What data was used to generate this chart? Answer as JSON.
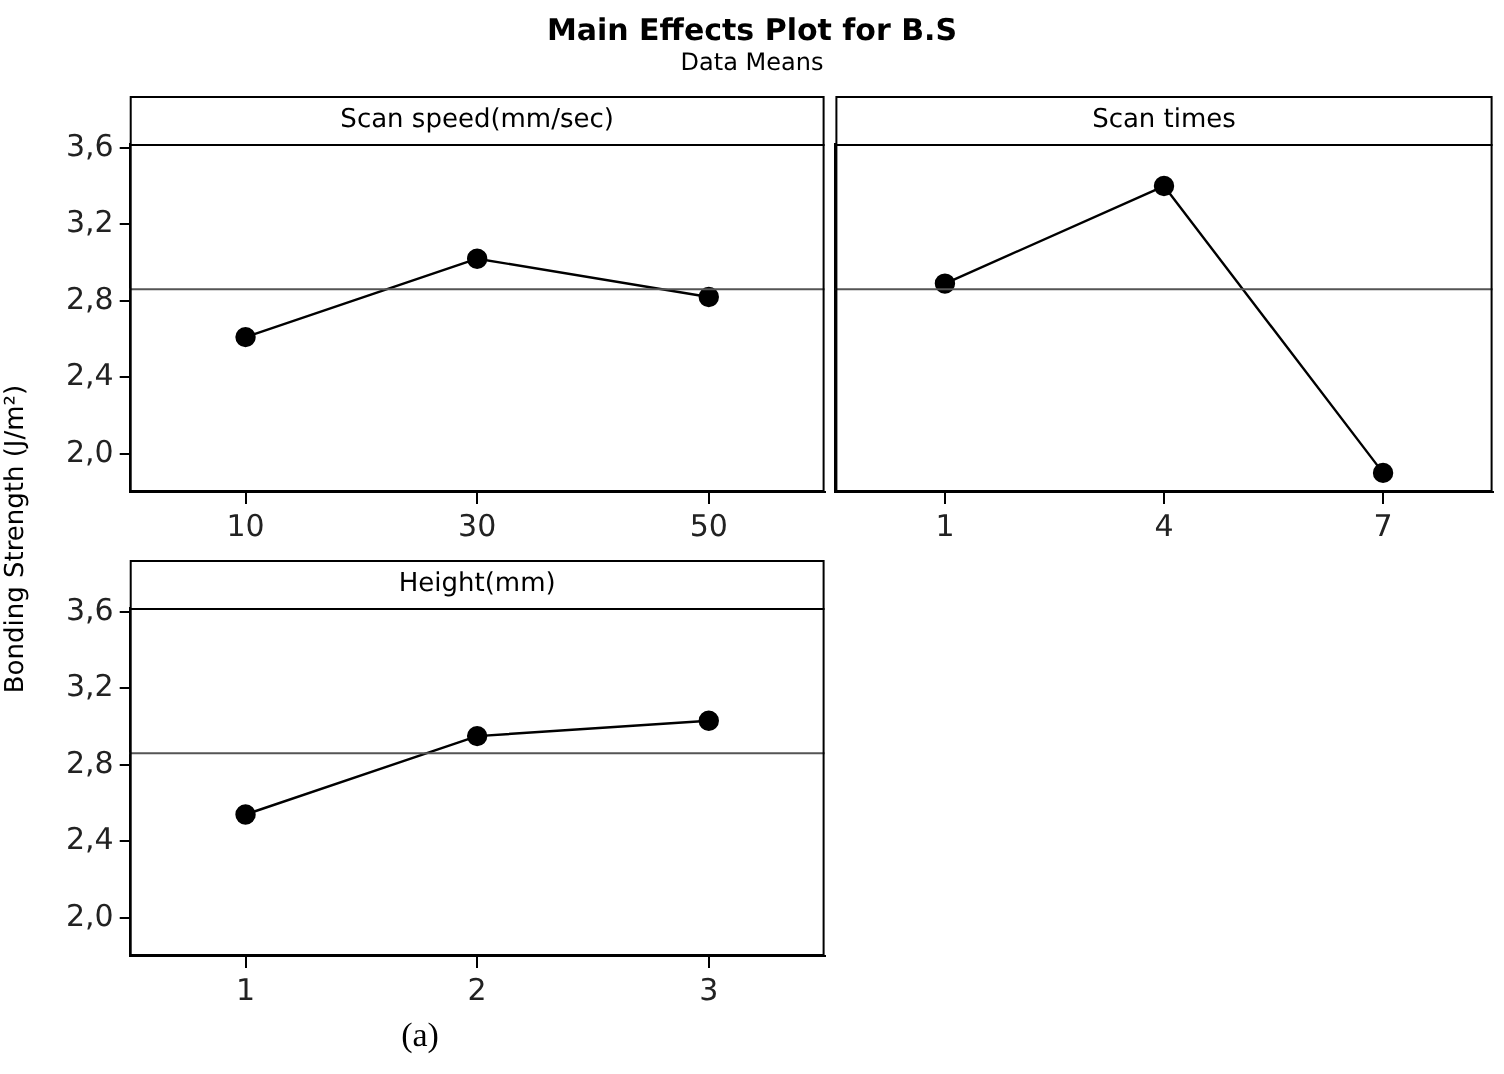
{
  "chart_data": [
    {
      "type": "line",
      "title": "Scan speed(mm/sec)",
      "ylabel": "Bonding Strength (J/m²)",
      "annotations": [
        "Main Effects Plot for B.S",
        "Data Means",
        "(a)"
      ],
      "categories": [
        "10",
        "30",
        "50"
      ],
      "series": [
        {
          "color": "#000000",
          "values": [
            2.61,
            3.02,
            2.82
          ]
        }
      ],
      "ylim": [
        1.8,
        3.62
      ],
      "yticks": [
        {
          "value": 2.0,
          "label": "2,0"
        },
        {
          "value": 2.4,
          "label": "2,4"
        },
        {
          "value": 2.8,
          "label": "2,8"
        },
        {
          "value": 3.2,
          "label": "3,2"
        },
        {
          "value": 3.6,
          "label": "3,6"
        }
      ],
      "ref_lines": [
        {
          "axis": "y",
          "value": 2.86,
          "color": "#555555"
        }
      ],
      "grid": false,
      "legend": false,
      "marker": "circle",
      "line_style": "solid"
    },
    {
      "type": "line",
      "title": "Scan times",
      "categories": [
        "1",
        "4",
        "7"
      ],
      "series": [
        {
          "color": "#000000",
          "values": [
            2.89,
            3.4,
            1.9
          ]
        }
      ],
      "ylim": [
        1.8,
        3.62
      ],
      "ref_lines": [
        {
          "axis": "y",
          "value": 2.86,
          "color": "#555555"
        }
      ],
      "grid": false,
      "legend": false,
      "marker": "circle",
      "line_style": "solid",
      "tick_labels": "x"
    },
    {
      "type": "line",
      "title": "Height(mm)",
      "categories": [
        "1",
        "2",
        "3"
      ],
      "series": [
        {
          "color": "#000000",
          "values": [
            2.54,
            2.95,
            3.03
          ]
        }
      ],
      "ylim": [
        1.8,
        3.62
      ],
      "yticks": [
        {
          "value": 2.0,
          "label": "2,0"
        },
        {
          "value": 2.4,
          "label": "2,4"
        },
        {
          "value": 2.8,
          "label": "2,8"
        },
        {
          "value": 3.2,
          "label": "3,2"
        },
        {
          "value": 3.6,
          "label": "3,6"
        }
      ],
      "ref_lines": [
        {
          "axis": "y",
          "value": 2.86,
          "color": "#555555"
        }
      ],
      "grid": false,
      "legend": false,
      "marker": "circle",
      "line_style": "solid"
    }
  ]
}
